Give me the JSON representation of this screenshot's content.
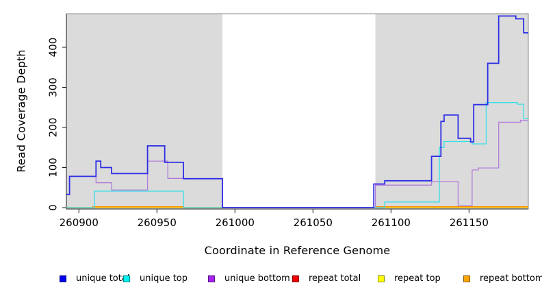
{
  "chart_data": {
    "type": "line",
    "step": true,
    "title": "",
    "xlabel": "Coordinate in Reference Genome",
    "ylabel": "Read Coverage Depth",
    "xlim": [
      260892,
      261188
    ],
    "ylim": [
      0,
      484
    ],
    "xticks": [
      260900,
      260950,
      261000,
      261050,
      261100,
      261150
    ],
    "yticks": [
      0,
      100,
      200,
      300,
      400
    ],
    "grid": false,
    "legend_position": "bottom",
    "background_shading": {
      "color": "#dbdbdb",
      "regions": [
        [
          260892,
          260992
        ],
        [
          261090,
          261188
        ]
      ],
      "white_gap": [
        260992,
        261090
      ]
    },
    "series": [
      {
        "name": "unique total",
        "color": "#0000f0",
        "line_color": "#2e2ee6",
        "line_width": 1.8,
        "points": [
          [
            260892,
            33
          ],
          [
            260894,
            78
          ],
          [
            260911,
            116
          ],
          [
            260914,
            100
          ],
          [
            260921,
            85
          ],
          [
            260944,
            154
          ],
          [
            260955,
            113
          ],
          [
            260967,
            72
          ],
          [
            260992,
            0
          ],
          [
            261089,
            59
          ],
          [
            261096,
            67
          ],
          [
            261126,
            128
          ],
          [
            261132,
            215
          ],
          [
            261134,
            231
          ],
          [
            261143,
            173
          ],
          [
            261151,
            164
          ],
          [
            261153,
            257
          ],
          [
            261162,
            360
          ],
          [
            261169,
            478
          ],
          [
            261180,
            471
          ],
          [
            261185,
            436
          ],
          [
            261188,
            436
          ]
        ]
      },
      {
        "name": "unique top",
        "color": "#00f0f0",
        "line_color": "#35e0e6",
        "line_width": 1.3,
        "points": [
          [
            260892,
            0
          ],
          [
            260910,
            41
          ],
          [
            260967,
            0
          ],
          [
            261096,
            14
          ],
          [
            261131,
            150
          ],
          [
            261134,
            165
          ],
          [
            261152,
            159
          ],
          [
            261161,
            262
          ],
          [
            261181,
            258
          ],
          [
            261185,
            222
          ],
          [
            261188,
            222
          ]
        ]
      },
      {
        "name": "unique bottom",
        "color": "#a522f0",
        "line_color": "#b27dd9",
        "line_width": 1.3,
        "points": [
          [
            260892,
            33
          ],
          [
            260894,
            78
          ],
          [
            260911,
            62
          ],
          [
            260921,
            44
          ],
          [
            260944,
            116
          ],
          [
            260957,
            73
          ],
          [
            260992,
            0
          ],
          [
            261090,
            56
          ],
          [
            261126,
            65
          ],
          [
            261143,
            5
          ],
          [
            261152,
            94
          ],
          [
            261156,
            99
          ],
          [
            261169,
            213
          ],
          [
            261183,
            218
          ],
          [
            261188,
            218
          ]
        ]
      },
      {
        "name": "repeat total",
        "color": "#f00000",
        "line_color": "#e00000",
        "line_width": 1,
        "points": [
          [
            260892,
            0
          ],
          [
            261188,
            0
          ]
        ]
      },
      {
        "name": "repeat top",
        "color": "#ffff00",
        "line_color": "#e6e600",
        "line_width": 1.2,
        "points": [
          [
            260892,
            0
          ],
          [
            261188,
            0
          ]
        ]
      },
      {
        "name": "repeat bottom",
        "color": "#ffa500",
        "line_color": "#ff8c00",
        "line_width": 1.6,
        "points": [
          [
            260892,
            0
          ],
          [
            260909,
            2
          ],
          [
            260967,
            0
          ],
          [
            261091,
            2
          ],
          [
            261188,
            2
          ]
        ]
      }
    ]
  }
}
